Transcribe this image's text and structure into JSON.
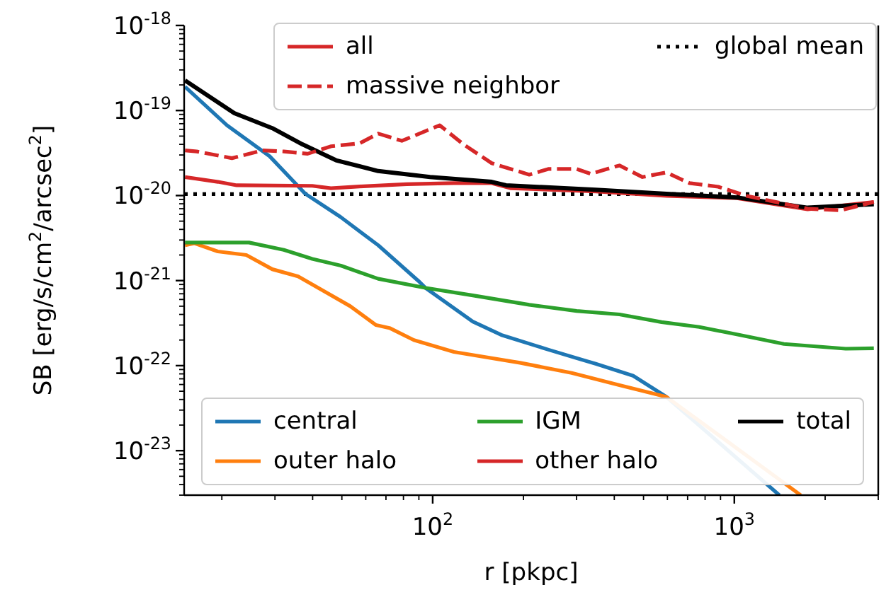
{
  "chart_data": {
    "type": "line",
    "xlabel": "r [pkpc]",
    "ylabel": "SB [erg/s/cm$^{2}$/arcsec$^{2}$]",
    "log": "xy",
    "marker": "none",
    "legend": "top right",
    "xlim": [
      15,
      3000
    ],
    "xticks": [
      {
        "value": 20,
        "label": null
      },
      {
        "value": 30,
        "label": null
      },
      {
        "value": 40,
        "label": null
      },
      {
        "value": 50,
        "label": null
      },
      {
        "value": 60,
        "label": null
      },
      {
        "value": 70,
        "label": null
      },
      {
        "value": 80,
        "label": null
      },
      {
        "value": 90,
        "label": null
      },
      {
        "value": 100,
        "label": "10$^{2}$"
      },
      {
        "value": 200,
        "label": null
      },
      {
        "value": 300,
        "label": null
      },
      {
        "value": 400,
        "label": null
      },
      {
        "value": 500,
        "label": null
      },
      {
        "value": 600,
        "label": null
      },
      {
        "value": 700,
        "label": null
      },
      {
        "value": 800,
        "label": null
      },
      {
        "value": 900,
        "label": null
      },
      {
        "value": 1000,
        "label": "10$^{3}$"
      },
      {
        "value": 2000,
        "label": null
      },
      {
        "value": 3000,
        "label": null
      }
    ],
    "ylim": [
      3e-24,
      1e-18
    ],
    "yticks": [
      {
        "value": 3e-24,
        "label": null
      },
      {
        "value": 4e-24,
        "label": null
      },
      {
        "value": 5e-24,
        "label": null
      },
      {
        "value": 6e-24,
        "label": null
      },
      {
        "value": 7e-24,
        "label": null
      },
      {
        "value": 8e-24,
        "label": null
      },
      {
        "value": 9e-24,
        "label": null
      },
      {
        "value": 1e-23,
        "label": "10$^{-23}$"
      },
      {
        "value": 2e-23,
        "label": null
      },
      {
        "value": 3e-23,
        "label": null
      },
      {
        "value": 4e-23,
        "label": null
      },
      {
        "value": 5e-23,
        "label": null
      },
      {
        "value": 6e-23,
        "label": null
      },
      {
        "value": 7e-23,
        "label": null
      },
      {
        "value": 8e-23,
        "label": null
      },
      {
        "value": 9e-23,
        "label": null
      },
      {
        "value": 1e-22,
        "label": "10$^{-22}$"
      },
      {
        "value": 2e-22,
        "label": null
      },
      {
        "value": 3e-22,
        "label": null
      },
      {
        "value": 4e-22,
        "label": null
      },
      {
        "value": 5e-22,
        "label": null
      },
      {
        "value": 6e-22,
        "label": null
      },
      {
        "value": 7e-22,
        "label": null
      },
      {
        "value": 8e-22,
        "label": null
      },
      {
        "value": 9e-22,
        "label": null
      },
      {
        "value": 1e-21,
        "label": "10$^{-21}$"
      },
      {
        "value": 2e-21,
        "label": null
      },
      {
        "value": 3e-21,
        "label": null
      },
      {
        "value": 4e-21,
        "label": null
      },
      {
        "value": 5e-21,
        "label": null
      },
      {
        "value": 6e-21,
        "label": null
      },
      {
        "value": 7e-21,
        "label": null
      },
      {
        "value": 8e-21,
        "label": null
      },
      {
        "value": 9e-21,
        "label": null
      },
      {
        "value": 1e-20,
        "label": "10$^{-20}$"
      },
      {
        "value": 2e-20,
        "label": null
      },
      {
        "value": 3e-20,
        "label": null
      },
      {
        "value": 4e-20,
        "label": null
      },
      {
        "value": 5e-20,
        "label": null
      },
      {
        "value": 6e-20,
        "label": null
      },
      {
        "value": 7e-20,
        "label": null
      },
      {
        "value": 8e-20,
        "label": null
      },
      {
        "value": 9e-20,
        "label": null
      },
      {
        "value": 1e-19,
        "label": "10$^{-19}$"
      },
      {
        "value": 2e-19,
        "label": null
      },
      {
        "value": 3e-19,
        "label": null
      },
      {
        "value": 4e-19,
        "label": null
      },
      {
        "value": 5e-19,
        "label": null
      },
      {
        "value": 6e-19,
        "label": null
      },
      {
        "value": 7e-19,
        "label": null
      },
      {
        "value": 8e-19,
        "label": null
      },
      {
        "value": 9e-19,
        "label": null
      },
      {
        "value": 1e-18,
        "label": "10$^{-18}$"
      }
    ],
    "series": [
      {
        "name": "central",
        "color": "#1f77b4",
        "x": [
          15.1,
          20.8,
          28.8,
          37.8,
          49.5,
          66,
          89.7,
          94.7,
          135.8,
          168.7,
          242,
          347,
          462,
          595,
          1410
        ],
        "values": [
          1.9e-19,
          6.7e-20,
          2.9e-20,
          1.05e-20,
          5.6e-21,
          2.6e-21,
          9.9e-22,
          8.2e-22,
          3.3e-22,
          2.3e-22,
          1.54e-22,
          1.05e-22,
          7.6e-23,
          4.3e-23,
          3e-24
        ]
      },
      {
        "name": "outer halo",
        "color": "#ff7f0e",
        "x": [
          15.1,
          16.2,
          19.4,
          24.1,
          29.4,
          35.8,
          44.5,
          53.3,
          64.9,
          72.3,
          86.6,
          117.6,
          194.8,
          289,
          416,
          595,
          1660
        ],
        "values": [
          2.6e-21,
          2.75e-21,
          2.2e-21,
          2e-21,
          1.36e-21,
          1.12e-21,
          7.2e-22,
          5e-22,
          3e-22,
          2.75e-22,
          2e-22,
          1.45e-22,
          1.08e-22,
          8.2e-23,
          5.9e-23,
          4.3e-23,
          3e-24
        ]
      },
      {
        "name": "IGM",
        "color": "#2ca02c",
        "x": [
          15.1,
          24.6,
          32.1,
          39.9,
          49.6,
          66,
          94.7,
          135.8,
          209,
          300,
          416,
          574,
          765,
          1020,
          1460,
          2340,
          2900
        ],
        "values": [
          2.8e-21,
          2.8e-21,
          2.3e-21,
          1.8e-21,
          1.5e-21,
          1.05e-21,
          8.2e-22,
          6.7e-22,
          5.2e-22,
          4.4e-22,
          4e-22,
          3.25e-22,
          2.85e-22,
          2.33e-22,
          1.8e-22,
          1.58e-22,
          1.6e-22
        ]
      },
      {
        "name": "other halo",
        "color": "#d62728",
        "x": [
          15.1,
          19.4,
          22.4,
          39.9,
          46,
          57.2,
          82,
          117.6,
          157,
          181,
          347,
          596,
          1020,
          1750,
          2900
        ],
        "values": [
          1.65e-20,
          1.45e-20,
          1.32e-20,
          1.3e-20,
          1.22e-20,
          1.28e-20,
          1.36e-20,
          1.4e-20,
          1.4e-20,
          1.22e-20,
          1.12e-20,
          9.9e-21,
          9.3e-21,
          6.9e-21,
          8.4e-21
        ]
      },
      {
        "name": "total",
        "color": "#000000",
        "x": [
          15.1,
          22,
          29.4,
          37,
          47.8,
          66,
          98,
          157,
          175,
          347,
          596,
          1020,
          1750,
          2900
        ],
        "values": [
          2.26e-19,
          9.3e-20,
          6.2e-20,
          4e-20,
          2.6e-20,
          1.94e-20,
          1.65e-20,
          1.45e-20,
          1.32e-20,
          1.17e-20,
          1.05e-20,
          9.5e-21,
          7.2e-21,
          7.9e-21
        ]
      },
      {
        "name": "all",
        "color": "#d62728",
        "line_style": "solid"
      },
      {
        "name": "massive neighbor",
        "color": "#d62728",
        "line_style": "dashed",
        "x": [
          15.1,
          16.5,
          21.6,
          27.3,
          32.1,
          38.5,
          46.1,
          57.2,
          66,
          79,
          105.5,
          126.5,
          157,
          209,
          241.6,
          300,
          334,
          416,
          496,
          595,
          710,
          884,
          1100,
          1750,
          2250,
          2900
        ],
        "values": [
          3.4e-20,
          3.3e-20,
          2.75e-20,
          3.4e-20,
          3.3e-20,
          3.1e-20,
          3.8e-20,
          4.1e-20,
          5.35e-20,
          4.4e-20,
          6.7e-20,
          4e-20,
          2.4e-20,
          1.76e-20,
          2.05e-20,
          2.05e-20,
          1.8e-20,
          2.26e-20,
          1.65e-20,
          1.87e-20,
          1.4e-20,
          1.27e-20,
          9.9e-21,
          7e-21,
          6.7e-21,
          8.4e-21
        ]
      }
    ],
    "ref_lines": [
      {
        "axis": "y",
        "value": 1.04e-20,
        "label": "global mean",
        "color": "#000000",
        "line_style": "dotted"
      }
    ]
  }
}
